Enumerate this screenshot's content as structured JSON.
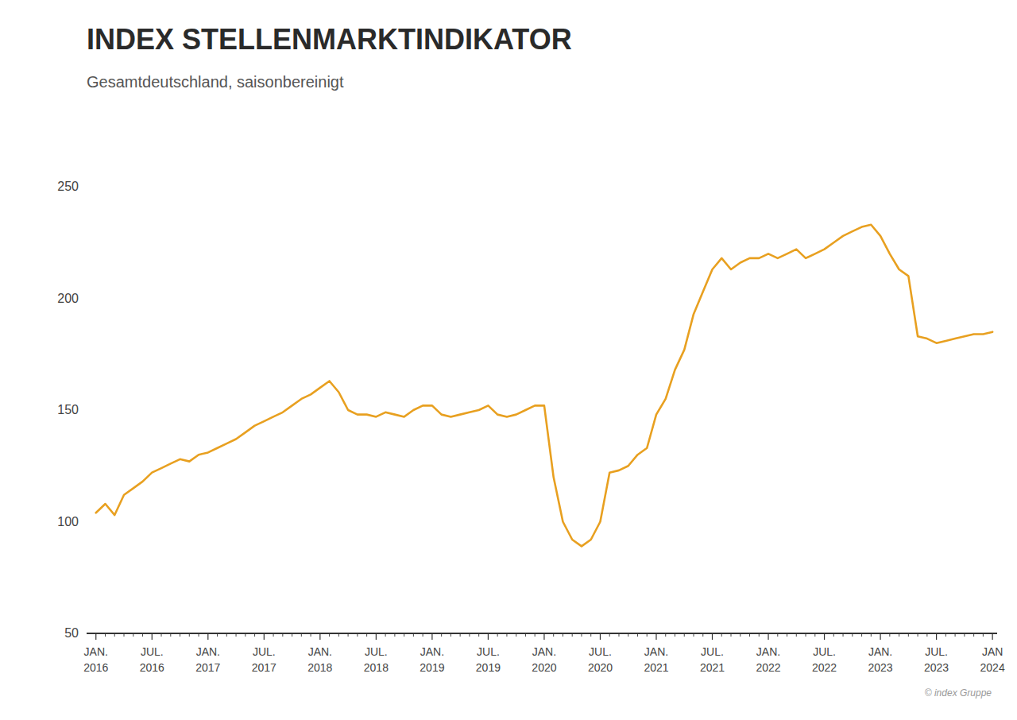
{
  "chart_data": {
    "type": "line",
    "title": "INDEX STELLENMARKTINDIKATOR",
    "subtitle": "Gesamtdeutschland, saisonbereinigt",
    "annotations": [
      "© index Gruppe"
    ],
    "color": "#E8A020",
    "background_color": "#FFFFFF",
    "grid": false,
    "ylim": [
      50,
      250
    ],
    "yticks": [
      50,
      100,
      150,
      200,
      250
    ],
    "categories": [
      "JAN.\n2016",
      null,
      null,
      null,
      null,
      null,
      "JUL.\n2016",
      null,
      null,
      null,
      null,
      null,
      "JAN.\n2017",
      null,
      null,
      null,
      null,
      null,
      "JUL.\n2017",
      null,
      null,
      null,
      null,
      null,
      "JAN.\n2018",
      null,
      null,
      null,
      null,
      null,
      "JUL.\n2018",
      null,
      null,
      null,
      null,
      null,
      "JAN.\n2019",
      null,
      null,
      null,
      null,
      null,
      "JUL.\n2019",
      null,
      null,
      null,
      null,
      null,
      "JAN.\n2020",
      null,
      null,
      null,
      null,
      null,
      "JUL.\n2020",
      null,
      null,
      null,
      null,
      null,
      "JAN.\n2021",
      null,
      null,
      null,
      null,
      null,
      "JUL.\n2021",
      null,
      null,
      null,
      null,
      null,
      "JAN.\n2022",
      null,
      null,
      null,
      null,
      null,
      "JUL.\n2022",
      null,
      null,
      null,
      null,
      null,
      "JAN.\n2023",
      null,
      null,
      null,
      null,
      null,
      "JUL.\n2023",
      null,
      null,
      null,
      null,
      null,
      "JAN\n2024"
    ],
    "values": [
      104,
      108,
      103,
      112,
      115,
      118,
      122,
      124,
      126,
      128,
      127,
      130,
      131,
      133,
      135,
      137,
      140,
      143,
      145,
      147,
      149,
      152,
      155,
      157,
      160,
      163,
      158,
      150,
      148,
      148,
      147,
      149,
      148,
      147,
      150,
      152,
      152,
      148,
      147,
      148,
      149,
      150,
      152,
      148,
      147,
      148,
      150,
      152,
      152,
      120,
      100,
      92,
      89,
      92,
      100,
      122,
      123,
      125,
      130,
      133,
      148,
      155,
      168,
      177,
      193,
      203,
      213,
      218,
      213,
      216,
      218,
      218,
      220,
      218,
      220,
      222,
      218,
      220,
      222,
      225,
      228,
      230,
      232,
      233,
      228,
      220,
      213,
      210,
      183,
      182,
      180,
      181,
      182,
      183,
      184,
      184,
      185
    ]
  }
}
